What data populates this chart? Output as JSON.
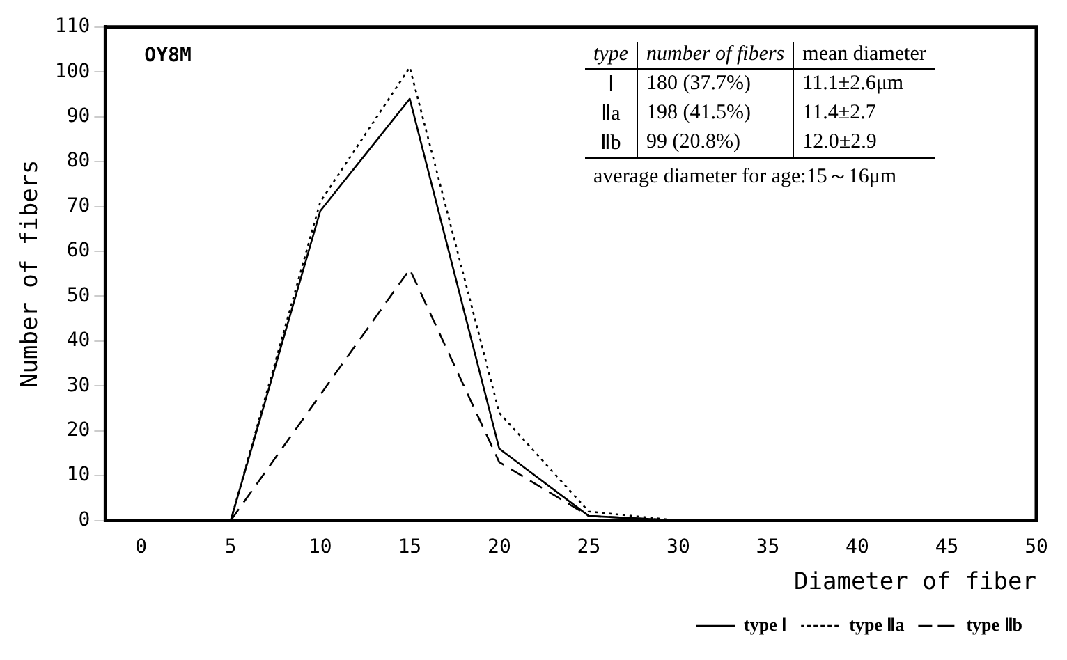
{
  "chart_data": {
    "type": "line",
    "title": "OY8M",
    "xlabel": "Diameter of fiber",
    "ylabel": "Number of fibers",
    "x": [
      5,
      10,
      15,
      20,
      25,
      30
    ],
    "series": [
      {
        "name": "type Ⅰ",
        "color": "#000000",
        "line_style": "solid",
        "values": [
          0,
          69,
          94,
          16,
          1,
          0
        ]
      },
      {
        "name": "type Ⅱa",
        "color": "#000000",
        "line_style": "dotted",
        "values": [
          0,
          71,
          101,
          24,
          2,
          0
        ]
      },
      {
        "name": "type Ⅱb",
        "color": "#000000",
        "line_style": "dashed",
        "values": [
          0,
          28,
          56,
          13,
          1,
          0
        ]
      }
    ],
    "xlim": [
      -2,
      50
    ],
    "xticks": [
      0,
      5,
      10,
      15,
      20,
      25,
      30,
      35,
      40,
      45,
      50
    ],
    "ylim": [
      0,
      110
    ],
    "yticks": [
      0,
      10,
      20,
      30,
      40,
      50,
      60,
      70,
      80,
      90,
      100,
      110
    ],
    "grid": false,
    "marker": "none",
    "legend": "bottom right",
    "annotations": [
      "type",
      "number of fibers",
      "mean diameter",
      "Ⅰ",
      "180 (37.7%)",
      "11.1±2.6μm",
      "Ⅱa",
      "198 (41.5%)",
      "11.4±2.7",
      "Ⅱb",
      "99 (20.8%)",
      "12.0±2.9",
      "average diameter for age:15～16μm"
    ]
  }
}
